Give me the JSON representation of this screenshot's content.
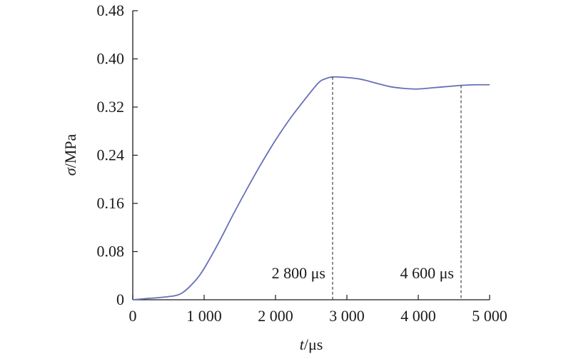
{
  "chart_data": {
    "type": "line",
    "xlabel": {
      "symbol": "t",
      "unit": "/μs"
    },
    "ylabel": {
      "symbol": "σ",
      "unit": "/MPa"
    },
    "xlim": [
      0,
      5000
    ],
    "ylim": [
      0,
      0.48
    ],
    "x_ticks": [
      0,
      1000,
      2000,
      3000,
      4000,
      5000
    ],
    "x_tick_labels": [
      "0",
      "1 000",
      "2 000",
      "3 000",
      "4 000",
      "5 000"
    ],
    "y_ticks": [
      0,
      0.08,
      0.16,
      0.24,
      0.32,
      0.4,
      0.48
    ],
    "y_tick_labels": [
      "0",
      "0.08",
      "0.16",
      "0.24",
      "0.32",
      "0.40",
      "0.48"
    ],
    "grid": false,
    "series": [
      {
        "color": "#6670b8",
        "x": [
          0,
          200,
          400,
          600,
          700,
          800,
          900,
          1000,
          1200,
          1400,
          1600,
          1800,
          2000,
          2200,
          2400,
          2600,
          2700,
          2800,
          3000,
          3200,
          3400,
          3600,
          3800,
          4000,
          4200,
          4400,
          4600,
          4800,
          5000
        ],
        "y": [
          0,
          0.002,
          0.004,
          0.007,
          0.012,
          0.022,
          0.035,
          0.052,
          0.094,
          0.14,
          0.184,
          0.226,
          0.265,
          0.3,
          0.331,
          0.36,
          0.367,
          0.37,
          0.369,
          0.366,
          0.36,
          0.354,
          0.351,
          0.35,
          0.352,
          0.354,
          0.356,
          0.357,
          0.357
        ]
      }
    ],
    "markers": [
      {
        "x": 2800,
        "label": "2 800 μs"
      },
      {
        "x": 4600,
        "label": "4 600 μs"
      }
    ]
  }
}
